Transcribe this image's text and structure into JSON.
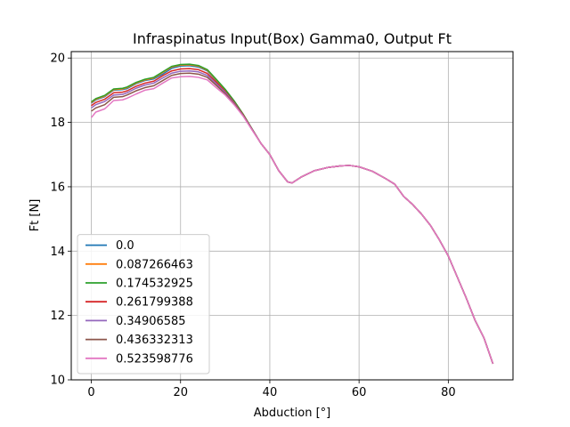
{
  "chart_data": {
    "type": "line",
    "title": "Infraspinatus Input(Box) Gamma0, Output Ft",
    "xlabel": "Abduction [°]",
    "ylabel": "Ft [N]",
    "xlim": [
      -4.5,
      94.5
    ],
    "ylim": [
      10.0,
      20.2
    ],
    "xticks": [
      0,
      20,
      40,
      60,
      80
    ],
    "yticks": [
      10,
      12,
      14,
      16,
      18,
      20
    ],
    "grid": true,
    "legend_position": "lower-left",
    "x": [
      0,
      1,
      3,
      5,
      7,
      8,
      10,
      12,
      14,
      16,
      18,
      20,
      22,
      24,
      26,
      28,
      30,
      32,
      34,
      36,
      38,
      40,
      42,
      44,
      45,
      47,
      50,
      53,
      56,
      58,
      60,
      63,
      66,
      68,
      70,
      72,
      74,
      76,
      78,
      80,
      82,
      84,
      86,
      88,
      90
    ],
    "series": [
      {
        "name": "0.0",
        "color": "#1f77b4",
        "values": [
          18.6,
          18.7,
          18.8,
          19.0,
          19.02,
          19.05,
          19.2,
          19.3,
          19.35,
          19.5,
          19.68,
          19.75,
          19.76,
          19.72,
          19.6,
          19.3,
          19.0,
          18.65,
          18.25,
          17.8,
          17.35,
          17.0,
          16.5,
          16.15,
          16.12,
          16.3,
          16.5,
          16.6,
          16.65,
          16.66,
          16.62,
          16.48,
          16.25,
          16.08,
          15.7,
          15.45,
          15.15,
          14.8,
          14.35,
          13.85,
          13.2,
          12.55,
          11.85,
          11.3,
          10.5
        ]
      },
      {
        "name": "0.087266463",
        "color": "#ff7f0e",
        "values": [
          18.62,
          18.72,
          18.82,
          19.02,
          19.04,
          19.08,
          19.22,
          19.32,
          19.38,
          19.55,
          19.72,
          19.78,
          19.79,
          19.75,
          19.62,
          19.32,
          19.02,
          18.66,
          18.26,
          17.8,
          17.35,
          17.0,
          16.5,
          16.15,
          16.12,
          16.3,
          16.5,
          16.6,
          16.65,
          16.66,
          16.62,
          16.48,
          16.25,
          16.08,
          15.7,
          15.45,
          15.15,
          14.8,
          14.35,
          13.85,
          13.2,
          12.55,
          11.85,
          11.3,
          10.5
        ]
      },
      {
        "name": "0.174532925",
        "color": "#2ca02c",
        "values": [
          18.64,
          18.74,
          18.84,
          19.04,
          19.06,
          19.1,
          19.24,
          19.34,
          19.4,
          19.57,
          19.74,
          19.8,
          19.81,
          19.77,
          19.64,
          19.34,
          19.03,
          18.67,
          18.26,
          17.8,
          17.35,
          17.0,
          16.5,
          16.15,
          16.12,
          16.3,
          16.5,
          16.6,
          16.65,
          16.66,
          16.62,
          16.48,
          16.25,
          16.08,
          15.7,
          15.45,
          15.15,
          14.8,
          14.35,
          13.85,
          13.2,
          12.55,
          11.85,
          11.3,
          10.5
        ]
      },
      {
        "name": "0.261799388",
        "color": "#d62728",
        "values": [
          18.52,
          18.62,
          18.72,
          18.92,
          18.94,
          18.98,
          19.12,
          19.22,
          19.28,
          19.45,
          19.6,
          19.66,
          19.67,
          19.64,
          19.52,
          19.25,
          18.96,
          18.62,
          18.24,
          17.79,
          17.35,
          17.0,
          16.5,
          16.15,
          16.12,
          16.3,
          16.5,
          16.6,
          16.65,
          16.66,
          16.62,
          16.48,
          16.25,
          16.08,
          15.7,
          15.45,
          15.15,
          14.8,
          14.35,
          13.85,
          13.2,
          12.55,
          11.85,
          11.3,
          10.5
        ]
      },
      {
        "name": "0.34906585",
        "color": "#9467bd",
        "values": [
          18.45,
          18.55,
          18.65,
          18.85,
          18.87,
          18.92,
          19.06,
          19.16,
          19.22,
          19.38,
          19.53,
          19.59,
          19.6,
          19.57,
          19.46,
          19.2,
          18.93,
          18.6,
          18.23,
          17.79,
          17.35,
          17.0,
          16.5,
          16.15,
          16.12,
          16.3,
          16.5,
          16.6,
          16.65,
          16.66,
          16.62,
          16.48,
          16.25,
          16.08,
          15.7,
          15.45,
          15.15,
          14.8,
          14.35,
          13.85,
          13.2,
          12.55,
          11.85,
          11.3,
          10.5
        ]
      },
      {
        "name": "0.436332313",
        "color": "#8c564b",
        "values": [
          18.35,
          18.45,
          18.55,
          18.78,
          18.8,
          18.85,
          18.98,
          19.08,
          19.14,
          19.3,
          19.46,
          19.52,
          19.53,
          19.5,
          19.4,
          19.15,
          18.89,
          18.58,
          18.22,
          17.78,
          17.35,
          17.0,
          16.5,
          16.15,
          16.12,
          16.3,
          16.5,
          16.6,
          16.65,
          16.66,
          16.62,
          16.48,
          16.25,
          16.08,
          15.7,
          15.45,
          15.15,
          14.8,
          14.35,
          13.85,
          13.2,
          12.55,
          11.85,
          11.3,
          10.5
        ]
      },
      {
        "name": "0.523598776",
        "color": "#e377c2",
        "values": [
          18.15,
          18.32,
          18.42,
          18.68,
          18.7,
          18.75,
          18.88,
          19.0,
          19.05,
          19.22,
          19.38,
          19.42,
          19.43,
          19.4,
          19.32,
          19.08,
          18.85,
          18.55,
          18.2,
          17.77,
          17.35,
          17.0,
          16.5,
          16.15,
          16.12,
          16.3,
          16.5,
          16.6,
          16.65,
          16.66,
          16.62,
          16.48,
          16.25,
          16.08,
          15.7,
          15.45,
          15.15,
          14.8,
          14.35,
          13.85,
          13.2,
          12.55,
          11.85,
          11.3,
          10.5
        ]
      }
    ]
  }
}
